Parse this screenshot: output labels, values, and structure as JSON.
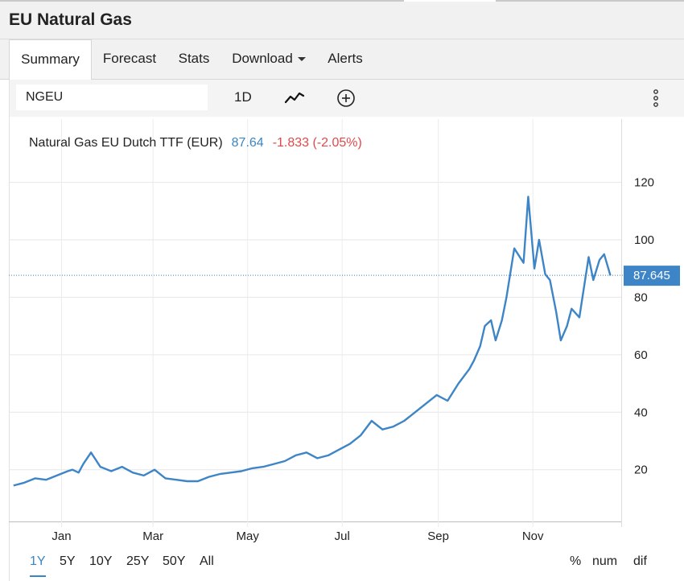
{
  "header": {
    "title": "EU Natural Gas"
  },
  "tabs": [
    {
      "label": "Summary",
      "active": true
    },
    {
      "label": "Forecast"
    },
    {
      "label": "Stats"
    },
    {
      "label": "Download",
      "dropdown": true
    },
    {
      "label": "Alerts"
    }
  ],
  "toolbar": {
    "symbol_value": "NGEU",
    "interval_label": "1D",
    "chart_type_icon": "line-chart-icon",
    "add_icon": "plus-circle-icon",
    "menu_icon": "vertical-dots-icon"
  },
  "legend": {
    "name": "Natural Gas EU Dutch TTF (EUR)",
    "last": "87.64",
    "change": "-1.833 (-2.05%)"
  },
  "ranges": [
    {
      "label": "1Y",
      "active": true
    },
    {
      "label": "5Y"
    },
    {
      "label": "10Y"
    },
    {
      "label": "25Y"
    },
    {
      "label": "50Y"
    },
    {
      "label": "All"
    }
  ],
  "scale_modes": [
    "%",
    "num",
    "dif"
  ],
  "colors": {
    "line": "#3d85c6",
    "badge": "#3d85c6",
    "change_negative": "#e0494a",
    "last": "#3a86c4"
  },
  "chart_data": {
    "type": "line",
    "series": [
      {
        "name": "Natural Gas EU Dutch TTF (EUR)",
        "x": [
          "2020-12-01",
          "2020-12-08",
          "2020-12-15",
          "2020-12-22",
          "2020-12-29",
          "2021-01-05",
          "2021-01-08",
          "2021-01-12",
          "2021-01-15",
          "2021-01-20",
          "2021-01-26",
          "2021-02-02",
          "2021-02-09",
          "2021-02-16",
          "2021-02-23",
          "2021-03-02",
          "2021-03-09",
          "2021-03-16",
          "2021-03-23",
          "2021-03-30",
          "2021-04-06",
          "2021-04-13",
          "2021-04-20",
          "2021-04-27",
          "2021-05-04",
          "2021-05-11",
          "2021-05-18",
          "2021-05-25",
          "2021-06-01",
          "2021-06-08",
          "2021-06-15",
          "2021-06-22",
          "2021-06-29",
          "2021-07-06",
          "2021-07-13",
          "2021-07-20",
          "2021-07-27",
          "2021-08-03",
          "2021-08-10",
          "2021-08-17",
          "2021-08-24",
          "2021-08-31",
          "2021-09-07",
          "2021-09-14",
          "2021-09-21",
          "2021-09-24",
          "2021-09-28",
          "2021-10-01",
          "2021-10-05",
          "2021-10-08",
          "2021-10-12",
          "2021-10-15",
          "2021-10-20",
          "2021-10-26",
          "2021-10-29",
          "2021-11-02",
          "2021-11-05",
          "2021-11-09",
          "2021-11-12",
          "2021-11-16",
          "2021-11-19",
          "2021-11-23",
          "2021-11-26",
          "2021-12-01",
          "2021-12-03",
          "2021-12-07",
          "2021-12-10",
          "2021-12-14",
          "2021-12-17",
          "2021-12-21"
        ],
        "values": [
          14.5,
          15.5,
          17,
          16.5,
          18,
          19.5,
          20,
          19,
          22,
          26,
          21,
          19.5,
          21,
          19,
          18,
          20,
          17,
          16.5,
          16,
          16,
          17.5,
          18.5,
          19,
          19.5,
          20.5,
          21,
          22,
          23,
          25,
          26,
          24,
          25,
          27,
          29,
          32,
          37,
          34,
          35,
          37,
          40,
          43,
          46,
          44,
          50,
          55,
          58,
          63,
          70,
          72,
          65,
          72,
          80,
          97,
          92,
          115,
          90,
          100,
          88,
          86,
          75,
          65,
          70,
          76,
          73,
          80,
          94,
          86,
          93,
          95,
          87.6
        ]
      }
    ],
    "x_ticks": [
      "Jan",
      "Mar",
      "May",
      "Jul",
      "Sep",
      "Nov"
    ],
    "y_ticks": [
      20,
      40,
      60,
      80,
      100,
      120
    ],
    "xlim": [
      "2020-11-28",
      "2021-12-28"
    ],
    "ylim": [
      2,
      142
    ],
    "last_value_label": "87.645",
    "grid": true
  }
}
